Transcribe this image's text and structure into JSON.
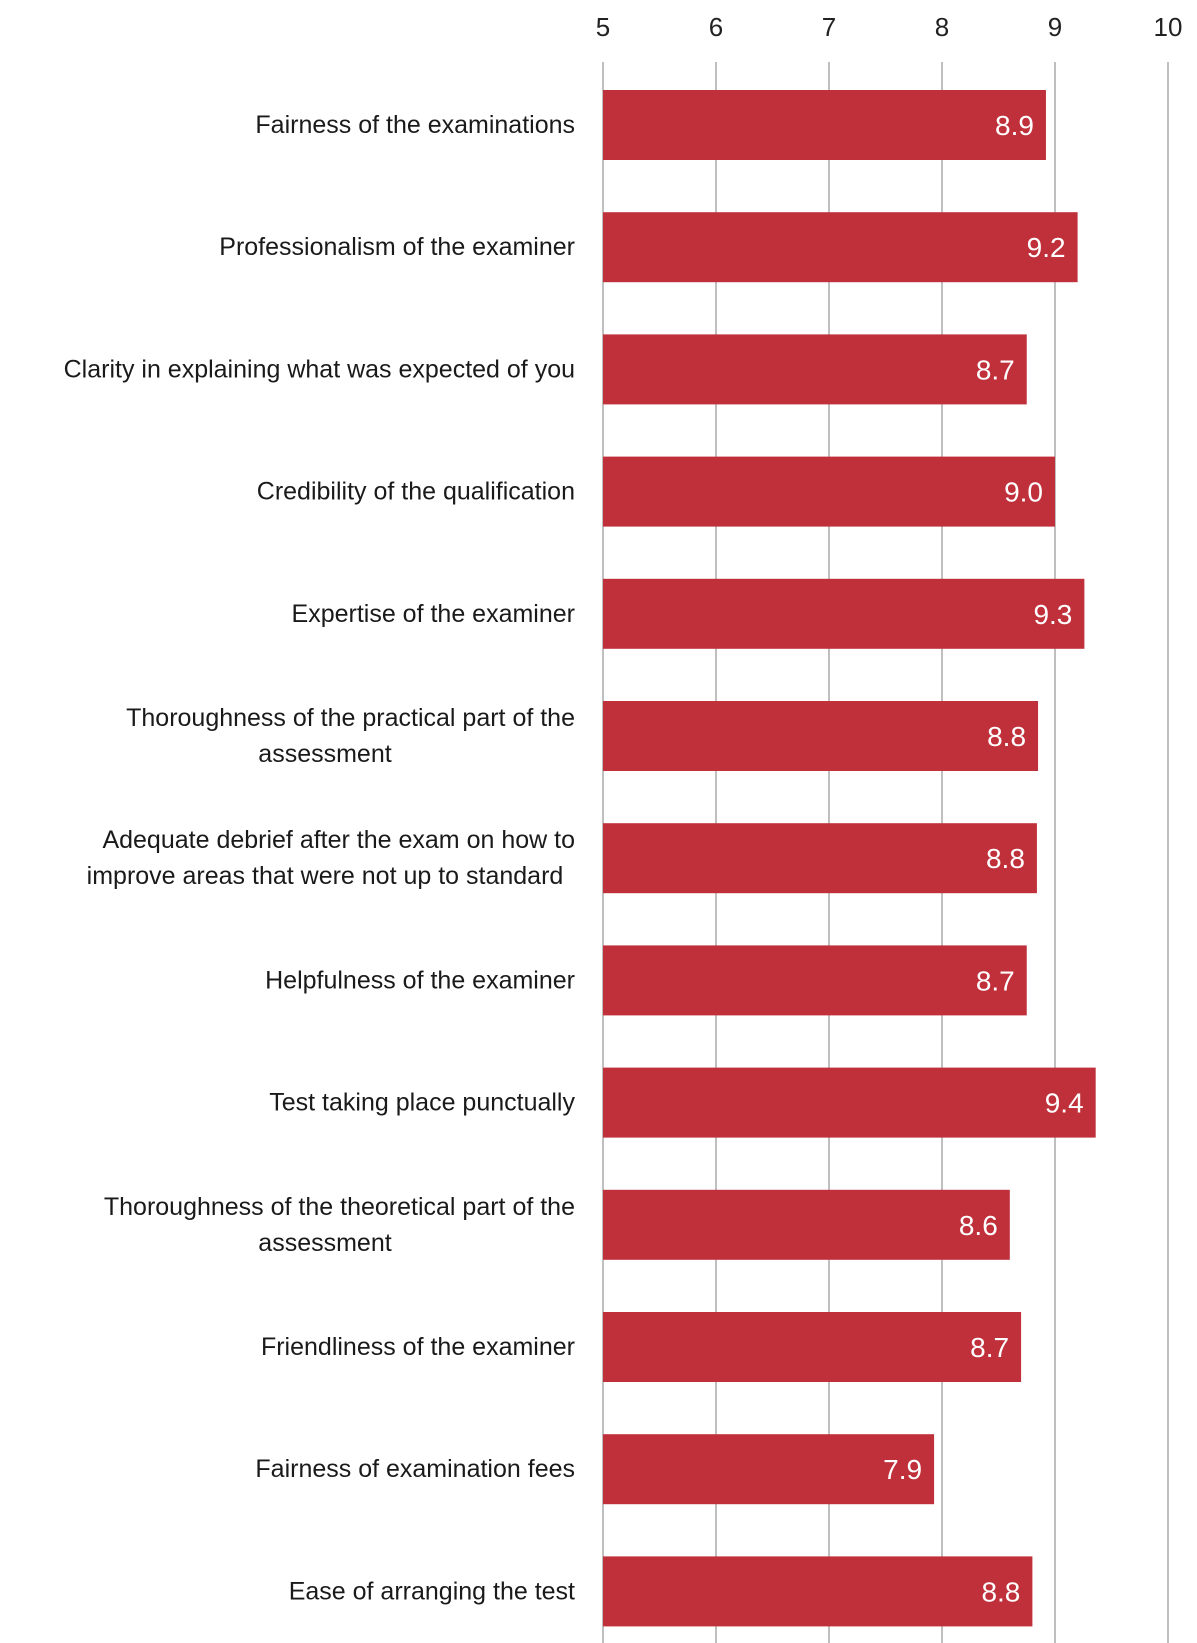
{
  "chart_data": {
    "type": "bar",
    "orientation": "horizontal",
    "title": "",
    "xlabel": "",
    "ylabel": "",
    "xlim": [
      5,
      10
    ],
    "x_ticks": [
      "5",
      "6",
      "7",
      "8",
      "9",
      "10"
    ],
    "axis_position": "top",
    "grid": true,
    "bar_color": "#C0303A",
    "grid_color": "#BFBFBF",
    "value_label_color": "#FFFFFF",
    "categories": [
      [
        "Fairness of the  examinations"
      ],
      [
        "Professionalism of the examiner"
      ],
      [
        "Clarity in explaining what was expected of you"
      ],
      [
        "Credibility of the qualification"
      ],
      [
        "Expertise of the  examiner"
      ],
      [
        "Thoroughness of the  practical part of the",
        "assessment"
      ],
      [
        "Adequate debrief after the exam on how to",
        "improve areas that were not  up to  standard"
      ],
      [
        "Helpfulness of the  examiner"
      ],
      [
        "Test taking place punctually"
      ],
      [
        "Thoroughness of the  theoretical part of the",
        "assessment"
      ],
      [
        "Friendliness of the  examiner"
      ],
      [
        "Fairness of examination fees"
      ],
      [
        "Ease of arranging the test"
      ]
    ],
    "values": [
      8.92,
      9.2,
      8.75,
      9.0,
      9.26,
      8.85,
      8.84,
      8.75,
      9.36,
      8.6,
      8.7,
      7.93,
      8.8
    ],
    "value_labels": [
      "8.9",
      "9.2",
      "8.7",
      "9.0",
      "9.3",
      "8.8",
      "8.8",
      "8.7",
      "9.4",
      "8.6",
      "8.7",
      "7.9",
      "8.8"
    ]
  }
}
